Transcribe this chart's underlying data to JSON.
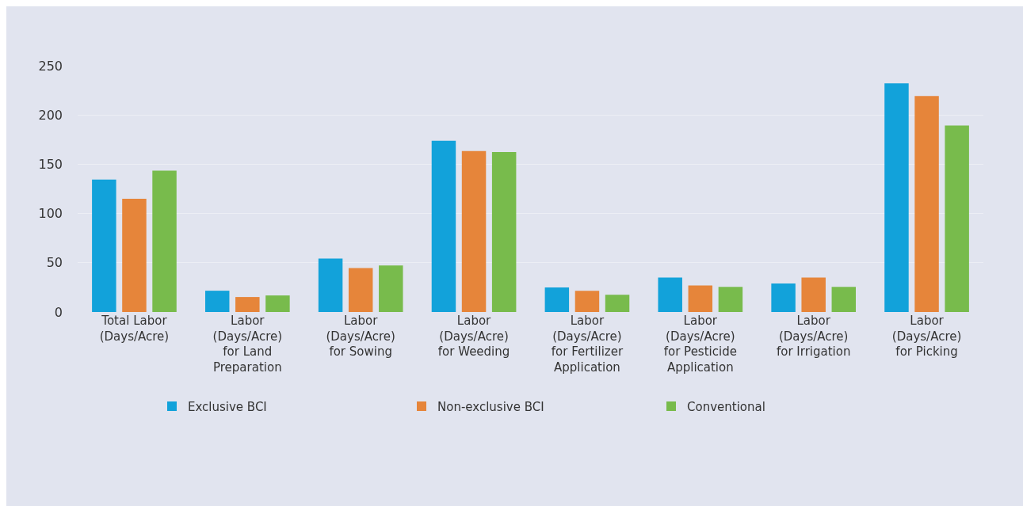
{
  "chart_data": {
    "type": "bar",
    "categories": [
      "Total Labor (Days/Acre)",
      "Labor (Days/Acre) for Land Preparation",
      "Labor (Days/Acre) for Sowing",
      "Labor (Days/Acre) for Weeding",
      "Labor (Days/Acre) for Fertilizer Application",
      "Labor (Days/Acre) for Pesticide Application",
      "Labor (Days/Acre) for Irrigation",
      "Labor (Days/Acre) for Picking"
    ],
    "series": [
      {
        "name": "Exclusive BCI",
        "color": "#12a2da",
        "values": [
          134.5,
          21.6,
          54.3,
          173.9,
          24.9,
          35,
          28.9,
          232.2
        ]
      },
      {
        "name": "Non-exclusive BCI",
        "color": "#e6853a",
        "values": [
          115,
          15.2,
          44.7,
          163.4,
          21.5,
          27,
          35,
          219.3
        ]
      },
      {
        "name": "Conventional",
        "color": "#78bb4c",
        "values": [
          143.4,
          16.8,
          47.3,
          162.4,
          17.5,
          25.5,
          25.5,
          189.4
        ]
      }
    ],
    "ylim": [
      0,
      250
    ],
    "yticks": [
      0,
      50,
      100,
      150,
      200,
      250
    ],
    "grid": "y",
    "legend": "bottom"
  }
}
